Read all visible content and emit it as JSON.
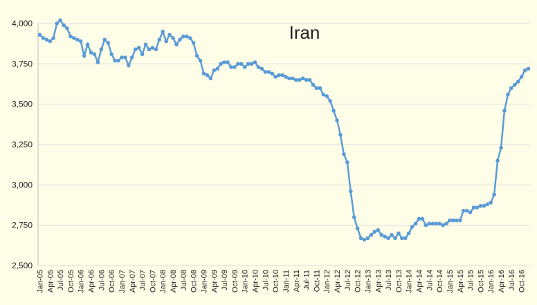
{
  "chart_data": {
    "type": "line",
    "title": "Iran",
    "categories": [
      "Jan-05",
      null,
      null,
      "Apr-05",
      null,
      null,
      "Jul-05",
      null,
      null,
      "Oct-05",
      null,
      null,
      "Jan-06",
      null,
      null,
      "Apr-06",
      null,
      null,
      "Jul-06",
      null,
      null,
      "Oct-06",
      null,
      null,
      "Jan-07",
      null,
      null,
      "Apr-07",
      null,
      null,
      "Jul-07",
      null,
      null,
      "Oct-07",
      null,
      null,
      "Jan-08",
      null,
      null,
      "Apr-08",
      null,
      null,
      "Jul-08",
      null,
      null,
      "Oct-08",
      null,
      null,
      "Jan-09",
      null,
      null,
      "Apr-09",
      null,
      null,
      "Jul-09",
      null,
      null,
      "Oct-09",
      null,
      null,
      "Jan-10",
      null,
      null,
      "Apr-10",
      null,
      null,
      "Jul-10",
      null,
      null,
      "Oct-10",
      null,
      null,
      "Jan-11",
      null,
      null,
      "Apr-11",
      null,
      null,
      "Jul-11",
      null,
      null,
      "Oct-11",
      null,
      null,
      "Jan-12",
      null,
      null,
      "Apr-12",
      null,
      null,
      "Jul-12",
      null,
      null,
      "Oct-12",
      null,
      null,
      "Jan-13",
      null,
      null,
      "Apr-13",
      null,
      null,
      "Jul-13",
      null,
      null,
      "Oct-13",
      null,
      null,
      "Jan-14",
      null,
      null,
      "Apr-14",
      null,
      null,
      "Jul-14",
      null,
      null,
      "Oct-14",
      null,
      null,
      "Jan-15",
      null,
      null,
      "Apr-15",
      null,
      null,
      "Jul-15",
      null,
      null,
      "Oct-15",
      null,
      null,
      "Jan-16",
      null,
      null,
      "Apr-16",
      null,
      null,
      "Jul-16",
      null,
      null,
      "Oct-16",
      null,
      null
    ],
    "series": [
      {
        "name": "Iran",
        "color": "#5b9bd5",
        "values": [
          3930,
          3910,
          3900,
          3890,
          3910,
          4000,
          4020,
          3990,
          3970,
          3920,
          3910,
          3900,
          3890,
          3800,
          3870,
          3820,
          3810,
          3760,
          3840,
          3900,
          3880,
          3810,
          3770,
          3770,
          3790,
          3790,
          3740,
          3790,
          3840,
          3850,
          3810,
          3870,
          3840,
          3850,
          3840,
          3900,
          3950,
          3890,
          3930,
          3910,
          3870,
          3900,
          3920,
          3920,
          3910,
          3880,
          3800,
          3770,
          3690,
          3680,
          3660,
          3710,
          3720,
          3750,
          3760,
          3760,
          3730,
          3730,
          3750,
          3750,
          3730,
          3750,
          3750,
          3760,
          3730,
          3720,
          3700,
          3700,
          3690,
          3670,
          3680,
          3680,
          3670,
          3660,
          3660,
          3650,
          3650,
          3660,
          3650,
          3650,
          3620,
          3600,
          3600,
          3560,
          3550,
          3520,
          3460,
          3400,
          3310,
          3190,
          3140,
          2960,
          2800,
          2730,
          2670,
          2660,
          2670,
          2690,
          2710,
          2720,
          2690,
          2680,
          2670,
          2690,
          2670,
          2700,
          2670,
          2670,
          2700,
          2740,
          2760,
          2790,
          2790,
          2750,
          2760,
          2760,
          2760,
          2760,
          2750,
          2760,
          2780,
          2780,
          2780,
          2780,
          2840,
          2840,
          2830,
          2860,
          2860,
          2870,
          2870,
          2880,
          2890,
          2940,
          3150,
          3230,
          3460,
          3560,
          3600,
          3620,
          3640,
          3670,
          3710,
          3720
        ]
      }
    ],
    "ylim": [
      2500,
      4000
    ],
    "yticks": [
      {
        "value": 2500,
        "label": "2,500"
      },
      {
        "value": 2750,
        "label": "2,750"
      },
      {
        "value": 3000,
        "label": "3,000"
      },
      {
        "value": 3250,
        "label": "3,250"
      },
      {
        "value": 3500,
        "label": "3,500"
      },
      {
        "value": 3750,
        "label": "3,750"
      },
      {
        "value": 4000,
        "label": "4,000"
      }
    ],
    "grid": true
  }
}
